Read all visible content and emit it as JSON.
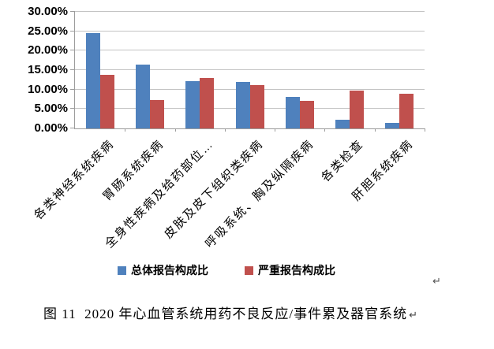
{
  "chart_data": {
    "type": "bar",
    "title": "",
    "categories": [
      "各类神经系统疾病",
      "胃肠系统疾病",
      "全身性疾病及给药部位…",
      "皮肤及皮下组织类疾病",
      "呼吸系统、胸及纵隔疾病",
      "各类检查",
      "肝胆系统疾病"
    ],
    "series": [
      {
        "name": "总体报告构成比",
        "color": "#4F81BD",
        "values": [
          24.5,
          16.4,
          12.2,
          12.0,
          8.2,
          2.3,
          1.5
        ]
      },
      {
        "name": "严重报告构成比",
        "color": "#C0504D",
        "values": [
          13.7,
          7.2,
          13.0,
          11.2,
          7.1,
          9.7,
          8.9
        ]
      }
    ],
    "ylim": [
      0,
      30
    ],
    "ytick_step": 5,
    "ytick_labels": [
      "0.00%",
      "5.00%",
      "10.00%",
      "15.00%",
      "20.00%",
      "25.00%",
      "30.00%"
    ],
    "grid": true,
    "legend_position": "bottom",
    "gridline_color": "#c3c3c3",
    "axis_color": "#9c9c9c"
  },
  "caption": {
    "text": "图 11  2020 年心血管系统用药不良反应/事件累及器官系统",
    "end_mark": "↵"
  },
  "para_mark": "↵"
}
